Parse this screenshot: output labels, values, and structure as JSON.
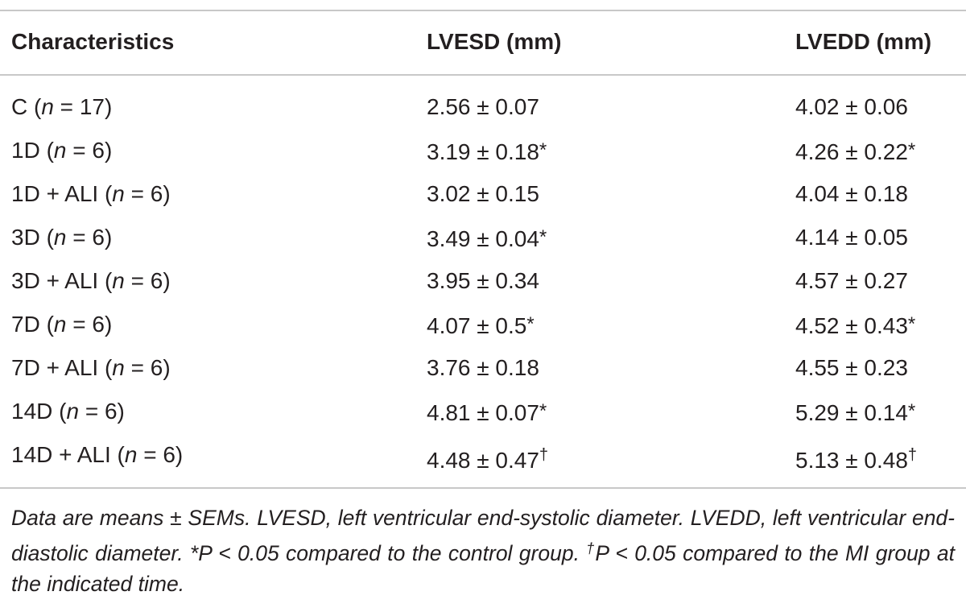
{
  "table": {
    "header": [
      "Characteristics",
      "LVESD (mm)",
      "LVEDD (mm)"
    ],
    "rows": [
      {
        "group": [
          "C (",
          "n",
          " = 17)"
        ],
        "cells": [
          {
            "text": "2.56 ± 0.07"
          },
          {
            "text": "4.02 ± 0.06"
          }
        ]
      },
      {
        "group": [
          "1D (",
          "n",
          " = 6)"
        ],
        "cells": [
          {
            "text": "3.19 ± 0.18",
            "mark": "*"
          },
          {
            "text": "4.26 ± 0.22",
            "mark": "*"
          }
        ]
      },
      {
        "group": [
          "1D + ALI (",
          "n",
          " = 6)"
        ],
        "cells": [
          {
            "text": "3.02 ± 0.15"
          },
          {
            "text": "4.04 ± 0.18"
          }
        ]
      },
      {
        "group": [
          "3D (",
          "n",
          " = 6)"
        ],
        "cells": [
          {
            "text": "3.49 ± 0.04",
            "mark": "*"
          },
          {
            "text": "4.14 ± 0.05"
          }
        ]
      },
      {
        "group": [
          "3D + ALI (",
          "n",
          " = 6)"
        ],
        "cells": [
          {
            "text": "3.95 ± 0.34"
          },
          {
            "text": "4.57 ± 0.27"
          }
        ]
      },
      {
        "group": [
          "7D (",
          "n",
          " = 6)"
        ],
        "cells": [
          {
            "text": "4.07 ± 0.5",
            "mark": "*"
          },
          {
            "text": "4.52 ± 0.43",
            "mark": "*"
          }
        ]
      },
      {
        "group": [
          "7D + ALI (",
          "n",
          " = 6)"
        ],
        "cells": [
          {
            "text": "3.76 ± 0.18"
          },
          {
            "text": "4.55 ± 0.23"
          }
        ]
      },
      {
        "group": [
          "14D (",
          "n",
          " = 6)"
        ],
        "cells": [
          {
            "text": "4.81 ± 0.07",
            "mark": "*"
          },
          {
            "text": "5.29 ± 0.14",
            "mark": "*"
          }
        ]
      },
      {
        "group": [
          "14D + ALI (",
          "n",
          " = 6)"
        ],
        "cells": [
          {
            "text": "4.48 ± 0.47",
            "mark": "†"
          },
          {
            "text": "5.13 ± 0.48",
            "mark": "†"
          }
        ]
      }
    ],
    "footnote": [
      "Data are means ± SEMs. LVESD, left ventricular end-systolic diameter. LVEDD, left ventricular end-diastolic diameter. *P < 0.05 compared to the control group. ",
      "†",
      "P < 0.05 compared to the MI group at the indicated time."
    ]
  }
}
